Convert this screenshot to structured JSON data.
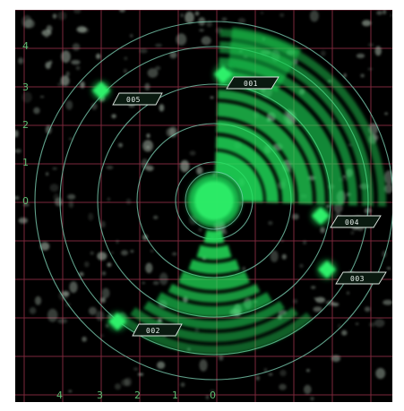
{
  "colors": {
    "background": "#000000",
    "grid": "#b03a55",
    "rings": "#7fd6b8",
    "sweep": "#1fe05a",
    "clutter": "#a8b8aa",
    "labels": "#5fbf74"
  },
  "axes": {
    "y_labels": [
      "4",
      "3",
      "2",
      "1",
      "0"
    ],
    "x_labels": [
      "4",
      "3",
      "2",
      "1",
      "0"
    ]
  },
  "targets": [
    {
      "id": "target-001",
      "tag": "001"
    },
    {
      "id": "target-002",
      "tag": "002"
    },
    {
      "id": "target-003",
      "tag": "003"
    },
    {
      "id": "target-004",
      "tag": "004"
    },
    {
      "id": "target-005",
      "tag": "005"
    }
  ]
}
